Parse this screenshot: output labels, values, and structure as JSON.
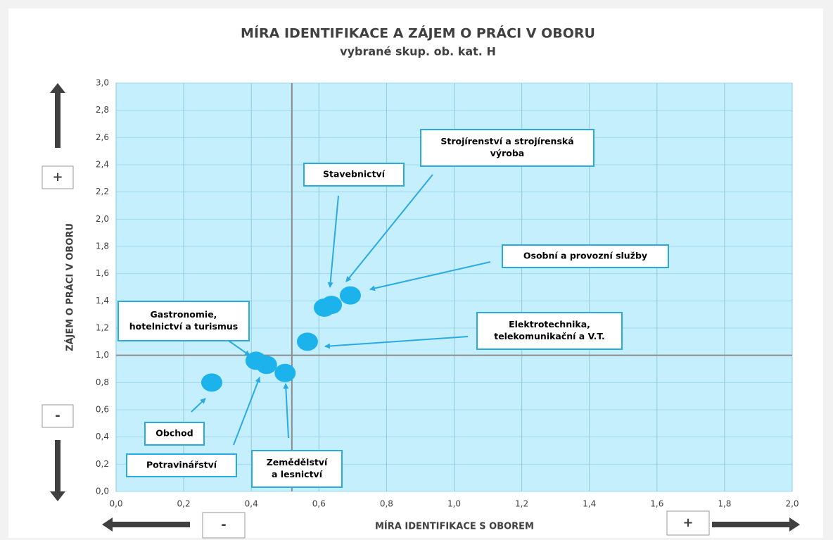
{
  "chart_data": {
    "type": "scatter",
    "title": "MÍRA IDENTIFIKACE A ZÁJEM O PRÁCI V OBORU",
    "subtitle": "vybrané skup. ob. kat. H",
    "x_label": "MÍRA IDENTIFIKACE S OBOREM",
    "y_label": "ZÁJEM O PRÁCI V OBORU",
    "color": "#1cb2ec",
    "points": [
      {
        "label_lines": [
          "Obchod"
        ],
        "x": 0.283,
        "y": 0.8
      },
      {
        "label_lines": [
          "Gastronomie,",
          "hotelnictví a turismus"
        ],
        "x": 0.414,
        "y": 0.96
      },
      {
        "label_lines": [
          "Potravinářství"
        ],
        "x": 0.445,
        "y": 0.93
      },
      {
        "label_lines": [
          "Zemědělství",
          "a lesnictví"
        ],
        "x": 0.5,
        "y": 0.87
      },
      {
        "label_lines": [
          "Elektrotechnika,",
          "telekomunikační a V.T."
        ],
        "x": 0.566,
        "y": 1.1
      },
      {
        "label_lines": [
          "Stavebnictví"
        ],
        "x": 0.616,
        "y": 1.35
      },
      {
        "label_lines": [
          "Strojírenství a strojírenská",
          "výroba"
        ],
        "x": 0.637,
        "y": 1.37
      },
      {
        "label_lines": [
          "Osobní a provozní služby"
        ],
        "x": 0.693,
        "y": 1.44
      }
    ],
    "reference_lines": {
      "x": 0.52,
      "y": 1.0
    },
    "xlim": [
      0,
      2.0
    ],
    "ylim": [
      0,
      3.0
    ],
    "xticks": [
      {
        "value": 0,
        "label": "0,0"
      },
      {
        "value": 0.2,
        "label": "0,2"
      },
      {
        "value": 0.4,
        "label": "0,4"
      },
      {
        "value": 0.6,
        "label": "0,6"
      },
      {
        "value": 0.8,
        "label": "0,8"
      },
      {
        "value": 1.0,
        "label": "1,0"
      },
      {
        "value": 1.2,
        "label": "1,2"
      },
      {
        "value": 1.4,
        "label": "1,4"
      },
      {
        "value": 1.6,
        "label": "1,6"
      },
      {
        "value": 1.8,
        "label": "1,8"
      },
      {
        "value": 2.0,
        "label": "2,0"
      }
    ],
    "yticks": [
      {
        "value": 0,
        "label": "0,0"
      },
      {
        "value": 0.2,
        "label": "0,2"
      },
      {
        "value": 0.4,
        "label": "0,4"
      },
      {
        "value": 0.6,
        "label": "0,6"
      },
      {
        "value": 0.8,
        "label": "0,8"
      },
      {
        "value": 1.0,
        "label": "1,0"
      },
      {
        "value": 1.2,
        "label": "1,2"
      },
      {
        "value": 1.4,
        "label": "1,4"
      },
      {
        "value": 1.6,
        "label": "1,6"
      },
      {
        "value": 1.8,
        "label": "1,8"
      },
      {
        "value": 2.0,
        "label": "2,0"
      },
      {
        "value": 2.2,
        "label": "2,2"
      },
      {
        "value": 2.4,
        "label": "2,4"
      },
      {
        "value": 2.6,
        "label": "2,6"
      },
      {
        "value": 2.8,
        "label": "2,8"
      },
      {
        "value": 3.0,
        "label": "3,0"
      }
    ],
    "grid": true,
    "markers": {
      "y_plus": "+",
      "y_minus": "-",
      "x_minus": "-",
      "x_plus": "+"
    }
  }
}
